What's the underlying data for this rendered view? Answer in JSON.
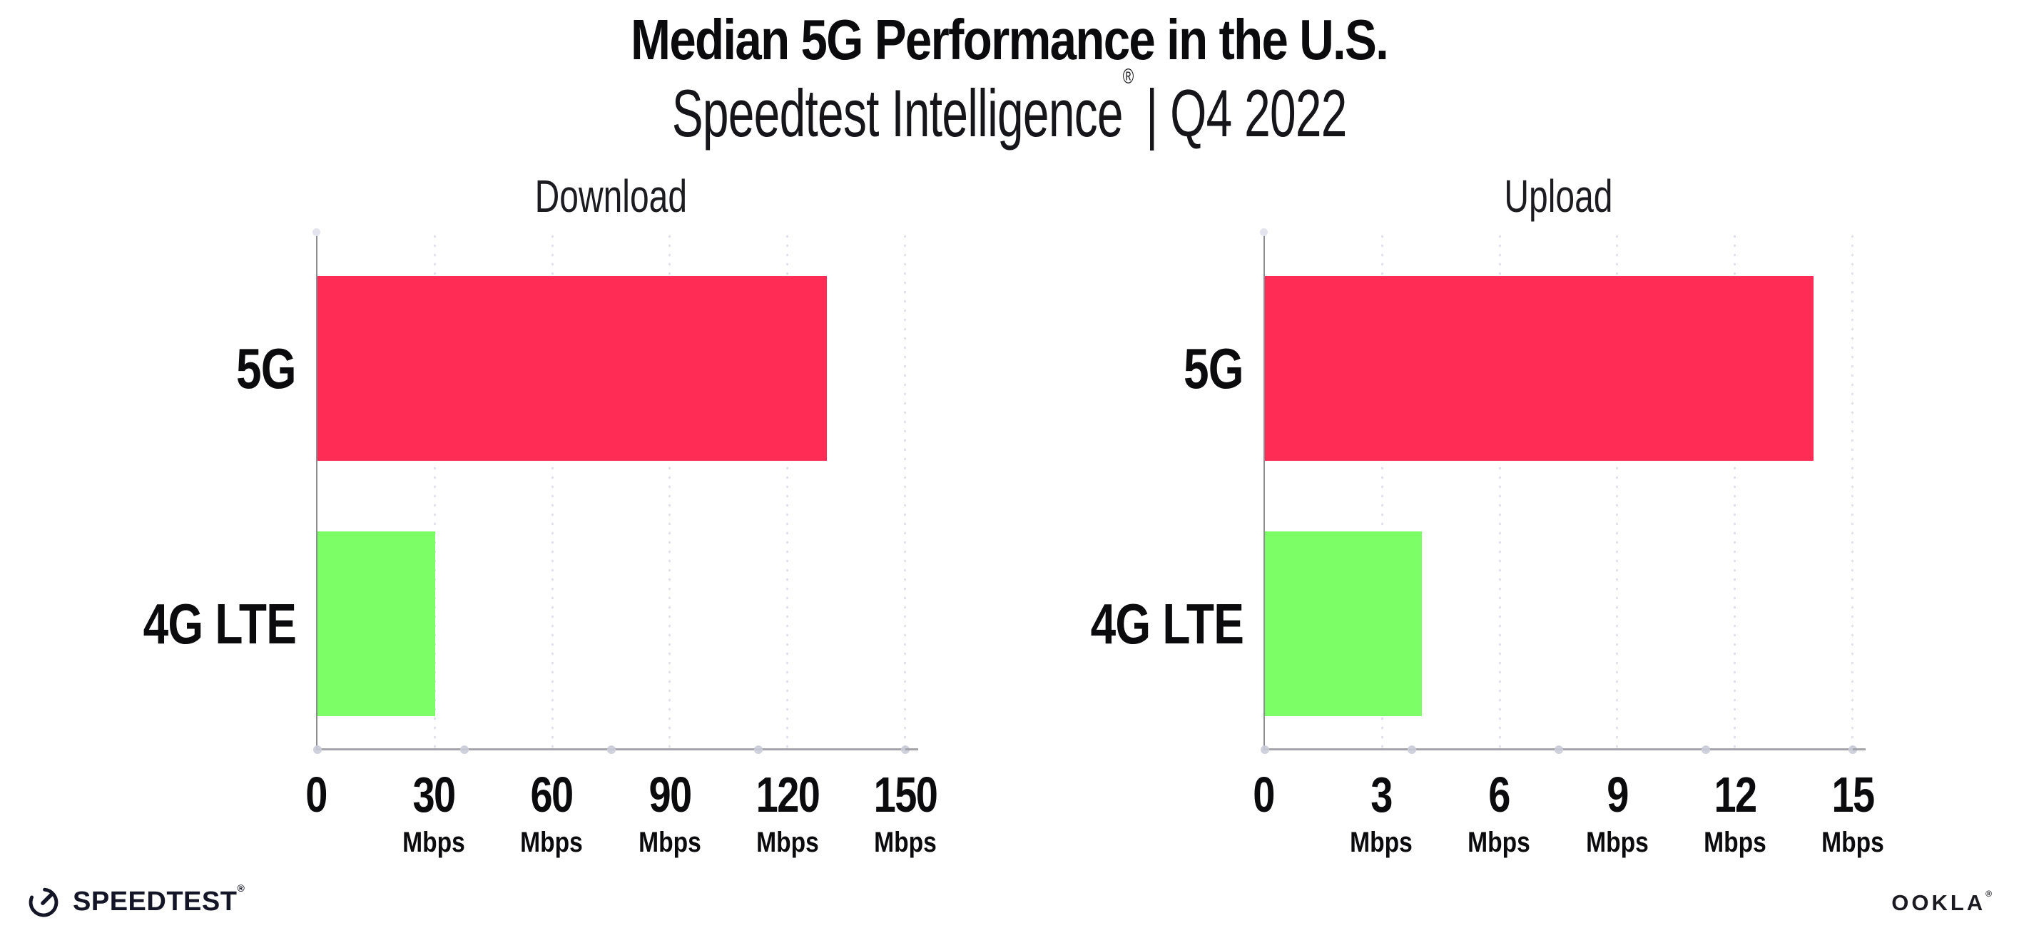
{
  "header": {
    "title": "Median 5G Performance in the U.S.",
    "subtitle_brand": "Speedtest Intelligence",
    "subtitle_registered": "®",
    "subtitle_rest": " | Q4 2022"
  },
  "chart_data": [
    {
      "type": "bar",
      "orientation": "horizontal",
      "title": "Download",
      "categories": [
        "5G",
        "4G LTE"
      ],
      "values": [
        130,
        30
      ],
      "value_unit": "Mbps",
      "xlim": [
        0,
        150
      ],
      "xticks": [
        0,
        30,
        60,
        90,
        120,
        150
      ],
      "tick_unit": "Mbps",
      "bar_colors": [
        "#ff2d55",
        "#7cff66"
      ],
      "grid": "dotted-vertical",
      "legend": "none"
    },
    {
      "type": "bar",
      "orientation": "horizontal",
      "title": "Upload",
      "categories": [
        "5G",
        "4G LTE"
      ],
      "values": [
        14,
        4
      ],
      "value_unit": "Mbps",
      "xlim": [
        0,
        15
      ],
      "xticks": [
        0,
        3,
        6,
        9,
        12,
        15
      ],
      "tick_unit": "Mbps",
      "bar_colors": [
        "#ff2d55",
        "#7cff66"
      ],
      "grid": "dotted-vertical",
      "legend": "none"
    }
  ],
  "footer": {
    "speedtest_label": "SPEEDTEST",
    "speedtest_mark": "®",
    "ookla_label": "OOKLA",
    "ookla_mark": "®"
  },
  "colors": {
    "bar_5g": "#ff2d55",
    "bar_4g_lte": "#7cff66",
    "x_axis_line": "#a4a4aa",
    "y_axis_line": "#8c8c92",
    "grid_dot": "#e0e1ec",
    "axis_marker_dot": "#caccd8",
    "text": "#0b0b0e"
  }
}
